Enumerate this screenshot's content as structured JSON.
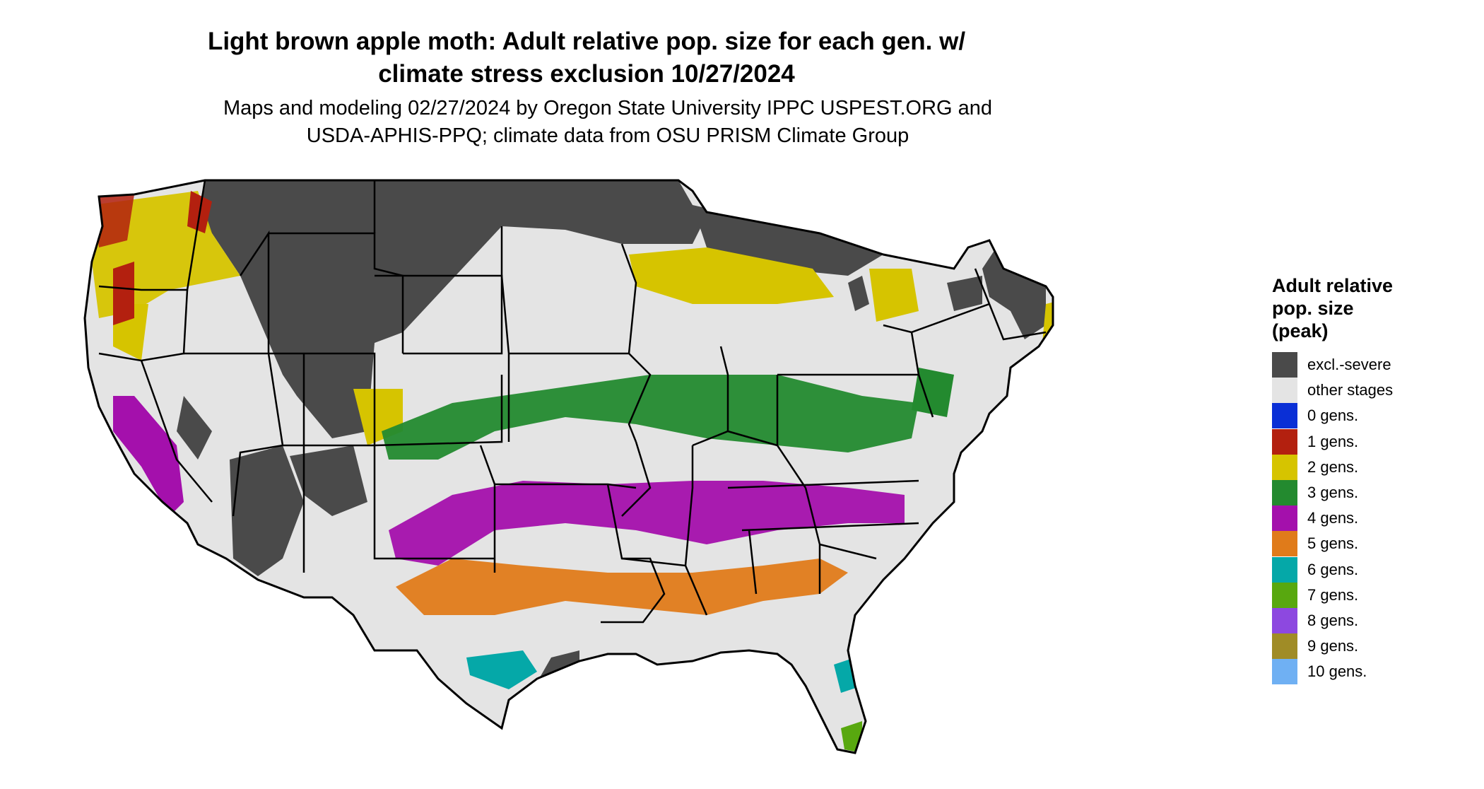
{
  "title_line1": "Light brown apple moth: Adult relative pop. size for each gen. w/",
  "title_line2": "climate stress exclusion 10/27/2024",
  "subtitle_line1": "Maps and modeling 02/27/2024 by Oregon State University IPPC USPEST.ORG and",
  "subtitle_line2": "USDA-APHIS-PPQ; climate data from OSU PRISM Climate Group",
  "legend": {
    "title_line1": "Adult relative",
    "title_line2": "pop. size",
    "title_line3": "(peak)",
    "items": [
      {
        "label": "excl.-severe",
        "color": "#4a4a4a"
      },
      {
        "label": "other stages",
        "color": "#e4e4e4"
      },
      {
        "label": "0 gens.",
        "color": "#0a2fd6"
      },
      {
        "label": "1 gens.",
        "color": "#b3200f"
      },
      {
        "label": "2 gens.",
        "color": "#d6c400"
      },
      {
        "label": "3 gens.",
        "color": "#238a2f"
      },
      {
        "label": "4 gens.",
        "color": "#a410ac"
      },
      {
        "label": "5 gens.",
        "color": "#e07b1a"
      },
      {
        "label": "6 gens.",
        "color": "#05a8a8"
      },
      {
        "label": "7 gens.",
        "color": "#58a80f"
      },
      {
        "label": "8 gens.",
        "color": "#8d48e0"
      },
      {
        "label": "9 gens.",
        "color": "#a08c26"
      },
      {
        "label": "10 gens.",
        "color": "#6fb0f3"
      }
    ]
  }
}
